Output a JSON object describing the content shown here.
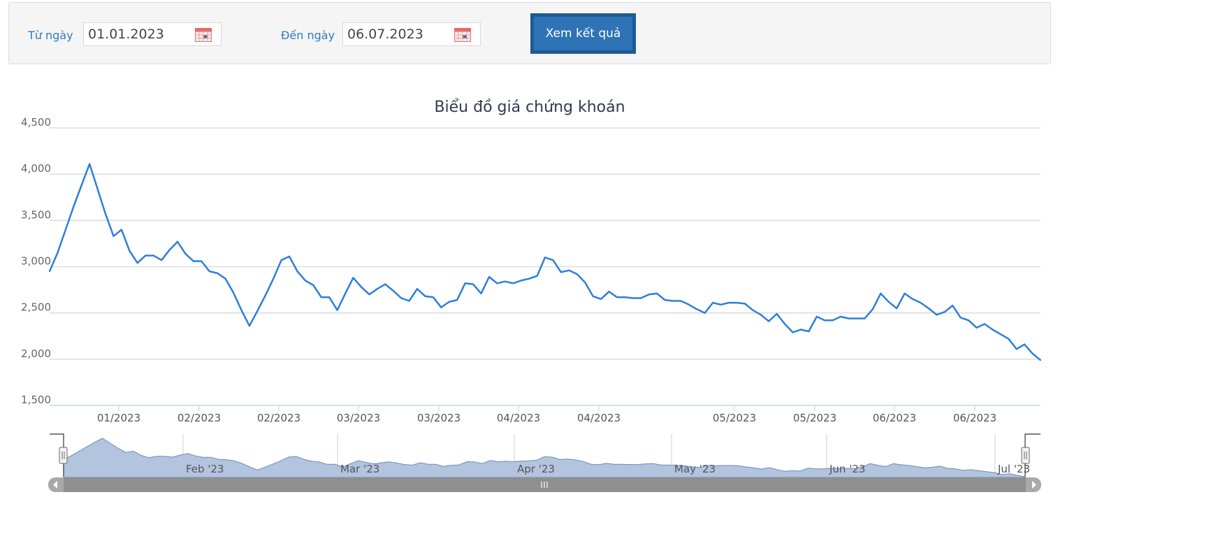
{
  "filter": {
    "from_label": "Từ ngày",
    "from_value": "01.01.2023",
    "to_label": "Đến ngày",
    "to_value": "06.07.2023",
    "submit_label": "Xem kết quả",
    "calendar_icon": "calendar-icon"
  },
  "colors": {
    "line": "#2e7fd9",
    "navigator_fill": "#b3c4de",
    "accent": "#2e73b6"
  },
  "chart_data": {
    "type": "line",
    "title": "Biểu đồ giá chứng khoán",
    "xlabel": "",
    "ylabel": "",
    "ylim": [
      1500,
      4500
    ],
    "yticks": [
      1500,
      2000,
      2500,
      3000,
      3500,
      4000,
      4500
    ],
    "ytick_labels": [
      "1,500",
      "2,000",
      "2,500",
      "3,000",
      "3,500",
      "4,000",
      "4,500"
    ],
    "xtick_labels": [
      "01/2023",
      "02/2023",
      "02/2023",
      "03/2023",
      "03/2023",
      "04/2023",
      "04/2023",
      "05/2023",
      "05/2023",
      "06/2023",
      "06/2023"
    ],
    "grid": true,
    "legend": "none",
    "series": [
      {
        "values": [
          2950,
          3150,
          3400,
          3650,
          3880,
          4110,
          3840,
          3570,
          3330,
          3400,
          3170,
          3040,
          3120,
          3120,
          3070,
          3180,
          3270,
          3140,
          3060,
          3060,
          2950,
          2930,
          2870,
          2720,
          2530,
          2360,
          2520,
          2690,
          2870,
          3070,
          3110,
          2950,
          2850,
          2800,
          2670,
          2670,
          2530,
          2710,
          2880,
          2780,
          2700,
          2760,
          2810,
          2740,
          2660,
          2630,
          2760,
          2680,
          2670,
          2560,
          2620,
          2640,
          2820,
          2810,
          2710,
          2890,
          2820,
          2840,
          2820,
          2850,
          2870,
          2900,
          3100,
          3070,
          2940,
          2960,
          2920,
          2830,
          2680,
          2650,
          2730,
          2670,
          2670,
          2660,
          2660,
          2700,
          2710,
          2640,
          2630,
          2630,
          2590,
          2540,
          2500,
          2610,
          2590,
          2610,
          2610,
          2600,
          2530,
          2480,
          2410,
          2490,
          2380,
          2290,
          2320,
          2300,
          2460,
          2420,
          2420,
          2460,
          2440,
          2440,
          2440,
          2540,
          2710,
          2620,
          2550,
          2710,
          2650,
          2610,
          2550,
          2480,
          2510,
          2580,
          2450,
          2420,
          2340,
          2380,
          2320,
          2270,
          2220,
          2110,
          2160,
          2060,
          1990
        ]
      }
    ],
    "navigator": {
      "labels": [
        "Feb '23",
        "Mar '23",
        "Apr '23",
        "May '23",
        "Jun '23",
        "Jul '23"
      ],
      "scrollbar_icon": "grip-icon"
    }
  }
}
